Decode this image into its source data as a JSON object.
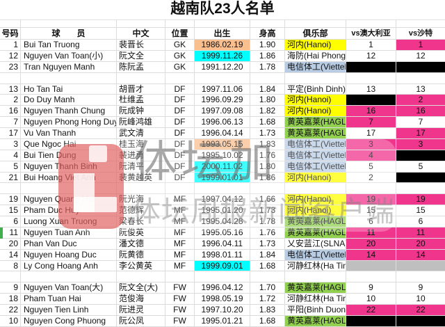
{
  "title": "越南队23人名单",
  "watermark": {
    "logo_text": "体坛加",
    "tagline": "体坛周报新闻客户端"
  },
  "colors": {
    "none": "",
    "yellow": "#ffff00",
    "green": "#92d050",
    "blue": "#b8cce4",
    "orange": "#fabf8f",
    "cyan": "#00ffff",
    "magenta": "#f0358d",
    "black": "#000000",
    "gray": "#bfbfbf",
    "grid": "#dcdcdc",
    "marker_green": "#3fae4b",
    "watermark_red": "#dc4848"
  },
  "table": {
    "columns": [
      "号码",
      "球　　员",
      "中文",
      "位置",
      "出生",
      "身高",
      "俱乐部",
      "vs澳大利亚",
      "vs沙特"
    ],
    "rows": [
      {
        "no": "1",
        "player": "Bui Tan Truong",
        "cn": "裴晋长",
        "pos": "GK",
        "birth": "1986.02.19",
        "birth_bg": "orange",
        "height": "1.90",
        "club": "河内(Hanoi)",
        "club_bg": "yellow",
        "aus": {
          "v": "1",
          "bg": "none"
        },
        "saudi": {
          "v": "1",
          "bg": "magenta"
        }
      },
      {
        "no": "12",
        "player": "Nguyen Van Toan(小)",
        "cn": "阮文全",
        "pos": "GK",
        "birth": "1999.11.26",
        "birth_bg": "cyan",
        "height": "1.86",
        "club": "海防(Hai Phong)",
        "club_bg": "none",
        "aus": {
          "v": "12",
          "bg": "none"
        },
        "saudi": {
          "v": "12",
          "bg": "none"
        }
      },
      {
        "no": "23",
        "player": "Tran Nguyen Manh",
        "cn": "陈阮孟",
        "pos": "GK",
        "birth": "1991.12.20",
        "birth_bg": "none",
        "height": "1.78",
        "club": "电信体工(Viettel)",
        "club_bg": "blue",
        "aus": {
          "v": "",
          "bg": "black"
        },
        "saudi": {
          "v": "",
          "bg": "black"
        }
      },
      {
        "spacer": true
      },
      {
        "no": "13",
        "player": "Ho Tan Tai",
        "cn": "胡晋才",
        "pos": "DF",
        "birth": "1997.11.06",
        "birth_bg": "none",
        "height": "1.84",
        "club": "平定(Binh Dinh)",
        "club_bg": "none",
        "aus": {
          "v": "13",
          "bg": "none"
        },
        "saudi": {
          "v": "13",
          "bg": "none"
        }
      },
      {
        "no": "2",
        "player": "Do Duy Manh",
        "cn": "杜维孟",
        "pos": "DF",
        "birth": "1996.09.29",
        "birth_bg": "none",
        "height": "1.80",
        "club": "河内(Hanoi)",
        "club_bg": "yellow",
        "aus": {
          "v": "",
          "bg": "black"
        },
        "saudi": {
          "v": "2",
          "bg": "magenta"
        }
      },
      {
        "no": "16",
        "player": "Nguyen Thanh Chung",
        "cn": "阮成钟",
        "pos": "DF",
        "birth": "1997.09.08",
        "birth_bg": "none",
        "height": "1.82",
        "club": "河内(Hanoi)",
        "club_bg": "yellow",
        "aus": {
          "v": "16",
          "bg": "magenta"
        },
        "saudi": {
          "v": "16",
          "bg": "magenta"
        }
      },
      {
        "no": "7",
        "player": "Nguyen Phong Hong Duy",
        "cn": "阮峰鸿雄",
        "pos": "DF",
        "birth": "1996.06.13",
        "birth_bg": "none",
        "height": "1.68",
        "club": "黄英嘉莱(HAGL)",
        "club_bg": "green",
        "aus": {
          "v": "7",
          "bg": "magenta"
        },
        "saudi": {
          "v": "7",
          "bg": "none"
        }
      },
      {
        "no": "17",
        "player": "Vu Van Thanh",
        "cn": "武文清",
        "pos": "DF",
        "birth": "1996.04.14",
        "birth_bg": "none",
        "height": "1.73",
        "club": "黄英嘉莱(HAGL)",
        "club_bg": "green",
        "aus": {
          "v": "17",
          "bg": "none"
        },
        "saudi": {
          "v": "17",
          "bg": "magenta"
        }
      },
      {
        "no": "3",
        "player": "Que Ngoc Hai",
        "cn": "桂玉海",
        "pos": "DF",
        "birth": "1993.05.15",
        "birth_bg": "orange",
        "height": "1.83",
        "club": "电信体工(Viettel)",
        "club_bg": "blue",
        "aus": {
          "v": "3",
          "bg": "magenta"
        },
        "saudi": {
          "v": "3",
          "bg": "magenta"
        }
      },
      {
        "no": "4",
        "player": "Bui Tien Dung",
        "cn": "裴进勇",
        "pos": "DF",
        "birth": "1995.10.02",
        "birth_bg": "none",
        "height": "1.76",
        "club": "电信体工(Viettel)",
        "club_bg": "blue",
        "aus": {
          "v": "4",
          "bg": "magenta"
        },
        "saudi": {
          "v": "",
          "bg": "black"
        }
      },
      {
        "no": "5",
        "player": "Nguyen Thanh Binh",
        "cn": "阮清平",
        "pos": "DF",
        "birth": "2000.11.02",
        "birth_bg": "cyan",
        "height": "1.80",
        "club": "电信体工(Viettel)",
        "club_bg": "blue",
        "aus": {
          "v": "5",
          "bg": "none"
        },
        "saudi": {
          "v": "5",
          "bg": "none"
        }
      },
      {
        "no": "21",
        "player": "Bui Hoang Viet Anh",
        "cn": "裴黄越英",
        "pos": "DF",
        "birth": "1999.01.01",
        "birth_bg": "cyan",
        "height": "1.86",
        "club": "河内(Hanoi)",
        "club_bg": "yellow",
        "aus": {
          "v": "2",
          "bg": "none"
        },
        "saudi": {
          "v": "",
          "bg": "black"
        }
      },
      {
        "spacer": true
      },
      {
        "no": "19",
        "player": "Nguyen Quang Hai",
        "cn": "阮光海",
        "pos": "MF",
        "birth": "1997.04.12",
        "birth_bg": "none",
        "height": "1.66",
        "club": "河内(Hanoi)",
        "club_bg": "yellow",
        "aus": {
          "v": "19",
          "bg": "magenta"
        },
        "saudi": {
          "v": "19",
          "bg": "magenta"
        }
      },
      {
        "no": "15",
        "player": "Pham Duc Huy",
        "cn": "范德辉",
        "pos": "MF",
        "birth": "1995.01.20",
        "birth_bg": "none",
        "height": "1.73",
        "club": "河内(Hanoi)",
        "club_bg": "yellow",
        "aus": {
          "v": "15",
          "bg": "none"
        },
        "saudi": {
          "v": "15",
          "bg": "none"
        }
      },
      {
        "no": "6",
        "player": "Luong Xuan Truong",
        "cn": "梁春长",
        "pos": "MF",
        "birth": "1995.04.28",
        "birth_bg": "none",
        "height": "1.78",
        "club": "黄英嘉莱(HAGL)",
        "club_bg": "green",
        "aus": {
          "v": "6",
          "bg": "none"
        },
        "saudi": {
          "v": "6",
          "bg": "none"
        }
      },
      {
        "no": "11",
        "player": "Nguyen Tuan Anh",
        "cn": "阮俊英",
        "pos": "MF",
        "birth": "1995.05.16",
        "birth_bg": "none",
        "height": "1.76",
        "club": "黄英嘉莱(HAGL)",
        "club_bg": "green",
        "aus": {
          "v": "11",
          "bg": "magenta"
        },
        "saudi": {
          "v": "11",
          "bg": "magenta"
        },
        "marker": true
      },
      {
        "no": "20",
        "player": "Phan Van Duc",
        "cn": "潘文德",
        "pos": "MF",
        "birth": "1996.04.11",
        "birth_bg": "none",
        "height": "1.73",
        "club": "乂安蓝江(SLNA)",
        "club_bg": "none",
        "aus": {
          "v": "20",
          "bg": "magenta"
        },
        "saudi": {
          "v": "20",
          "bg": "magenta"
        }
      },
      {
        "no": "14",
        "player": "Nguyen Hoang Duc",
        "cn": "阮黄德",
        "pos": "MF",
        "birth": "1998.01.11",
        "birth_bg": "none",
        "height": "1.84",
        "club": "电信体工(Viettel)",
        "club_bg": "blue",
        "aus": {
          "v": "14",
          "bg": "magenta"
        },
        "saudi": {
          "v": "14",
          "bg": "magenta"
        }
      },
      {
        "no": "8",
        "player": "Ly Cong Hoang Anh",
        "cn": "李公黄英",
        "pos": "MF",
        "birth": "1999.09.01",
        "birth_bg": "cyan",
        "height": "1.68",
        "club": "河静红林(Ha Tinh)",
        "club_bg": "none",
        "aus": {
          "v": "",
          "bg": "gray"
        },
        "saudi": {
          "v": "",
          "bg": "gray"
        }
      },
      {
        "spacer": true
      },
      {
        "no": "9",
        "player": "Nguyen Van Toan(大)",
        "cn": "阮文全(大)",
        "pos": "FW",
        "birth": "1996.04.12",
        "birth_bg": "none",
        "height": "1.70",
        "club": "黄英嘉莱(HAGL)",
        "club_bg": "green",
        "aus": {
          "v": "9",
          "bg": "none"
        },
        "saudi": {
          "v": "9",
          "bg": "none"
        }
      },
      {
        "no": "18",
        "player": "Pham Tuan Hai",
        "cn": "范俊海",
        "pos": "FW",
        "birth": "1998.05.19",
        "birth_bg": "none",
        "height": "1.72",
        "club": "河静红林(Ha Tinh)",
        "club_bg": "none",
        "aus": {
          "v": "10",
          "bg": "none"
        },
        "saudi": {
          "v": "10",
          "bg": "none"
        }
      },
      {
        "no": "22",
        "player": "Nguyen Tien Linh",
        "cn": "阮进灵",
        "pos": "FW",
        "birth": "1997.10.20",
        "birth_bg": "none",
        "height": "1.83",
        "club": "平阳(Binh Duong)",
        "club_bg": "none",
        "aus": {
          "v": "22",
          "bg": "magenta"
        },
        "saudi": {
          "v": "22",
          "bg": "magenta"
        }
      },
      {
        "no": "10",
        "player": "Nguyen Cong Phuong",
        "cn": "阮公凤",
        "pos": "FW",
        "birth": "1995.01.21",
        "birth_bg": "none",
        "height": "1.68",
        "club": "黄英嘉莱(HAGL)",
        "club_bg": "green",
        "aus": {
          "v": "",
          "bg": "black"
        },
        "saudi": {
          "v": "",
          "bg": "black"
        }
      }
    ]
  }
}
